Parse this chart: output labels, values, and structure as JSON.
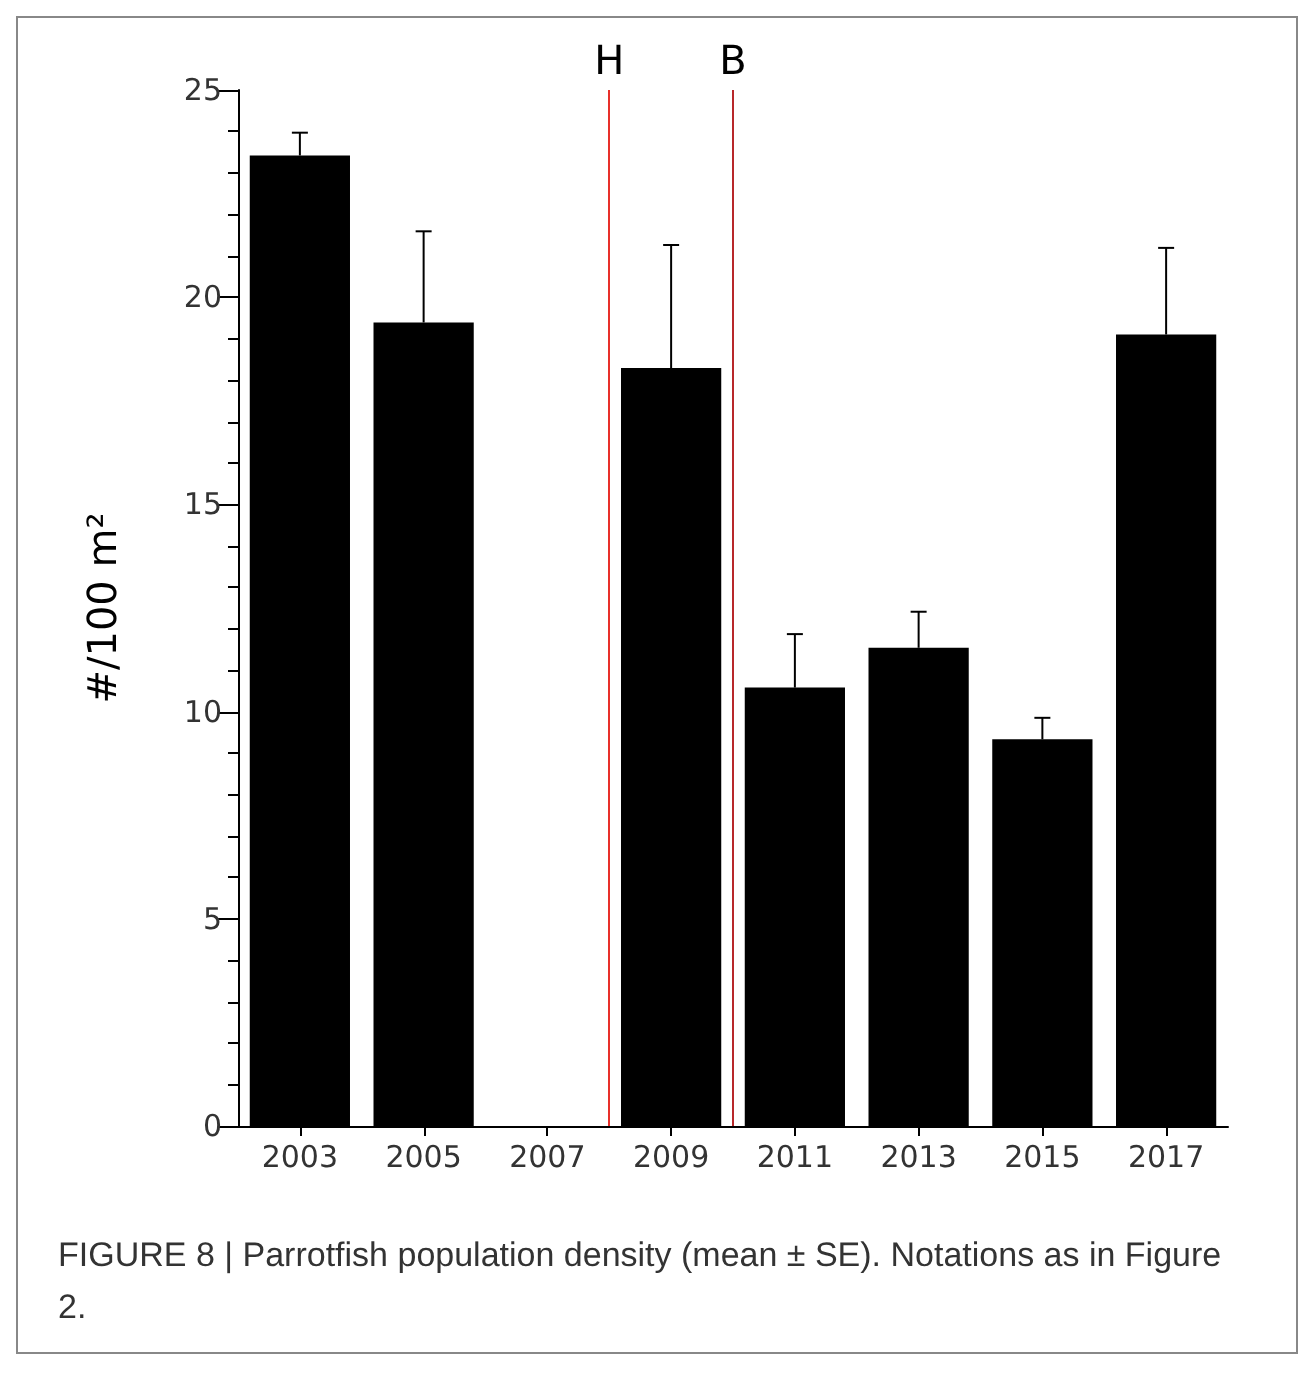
{
  "chart_data": {
    "type": "bar",
    "ylabel": "#/100 m²",
    "x": [
      2003,
      2005,
      2007,
      2009,
      2011,
      2013,
      2015,
      2017
    ],
    "series": [
      {
        "color": "#000000",
        "values": [
          23.42,
          19.39,
          null,
          18.29,
          10.58,
          11.54,
          9.33,
          19.1
        ],
        "errors": [
          [
            23.42,
            23.97
          ],
          [
            19.39,
            21.59
          ],
          null,
          [
            18.29,
            21.26
          ],
          [
            10.58,
            11.87
          ],
          [
            11.54,
            12.41
          ],
          [
            9.33,
            9.85
          ],
          [
            19.1,
            21.19
          ]
        ]
      }
    ],
    "xlim": [
      2002,
      2018
    ],
    "xticks": [
      2003,
      2005,
      2007,
      2009,
      2011,
      2013,
      2015,
      2017
    ],
    "ylim": [
      0,
      25
    ],
    "yticks": [
      0,
      5,
      10,
      15,
      20,
      25
    ],
    "ref_lines": [
      {
        "axis": "x",
        "value": 2008,
        "label": "H",
        "color": "#e8302a"
      },
      {
        "axis": "x",
        "value": 2010,
        "label": "B",
        "color": "#b8282a"
      }
    ],
    "annotations": [
      "FIGURE 8 | Parrotfish population density (mean ± SE). Notations as in Figure 2."
    ],
    "grid": false
  }
}
